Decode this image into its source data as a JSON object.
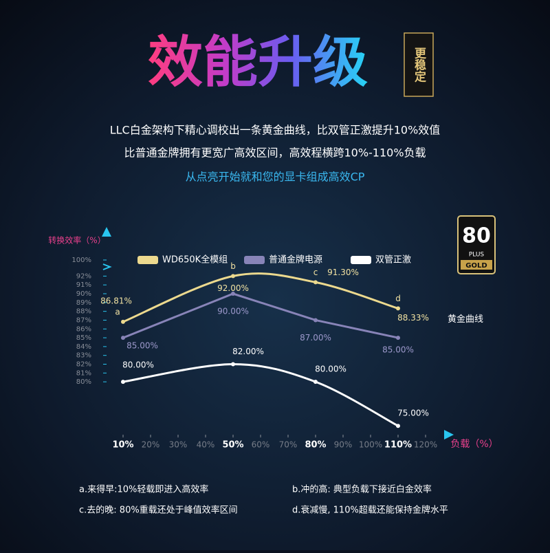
{
  "header": {
    "title": "效能升级",
    "badge": "更稳定",
    "lines": [
      "LLC白金架构下精心调校出一条黄金曲线，比双管正激提升10%效值",
      "比普通金牌拥有更宽广高效区间，高效程横跨10%-110%负载",
      "从点亮开始就和您的显卡组成高效CP"
    ]
  },
  "certification": {
    "number": "80",
    "plus": "PLUS",
    "grade": "GOLD"
  },
  "chart_data": {
    "type": "line",
    "y_label": "转换效率（%）",
    "x_label": "负载（%）",
    "x": [
      10,
      50,
      80,
      110
    ],
    "xlim": [
      4,
      128
    ],
    "xticks": [
      {
        "value": 10,
        "label": "10%"
      },
      {
        "value": 20,
        "label": "20%"
      },
      {
        "value": 30,
        "label": "30%"
      },
      {
        "value": 40,
        "label": "40%"
      },
      {
        "value": 50,
        "label": "50%"
      },
      {
        "value": 60,
        "label": "60%"
      },
      {
        "value": 70,
        "label": "70%"
      },
      {
        "value": 80,
        "label": "80%"
      },
      {
        "value": 90,
        "label": "90%"
      },
      {
        "value": 100,
        "label": "100%"
      },
      {
        "value": 110,
        "label": "110%"
      },
      {
        "value": 120,
        "label": "120%"
      }
    ],
    "ylim": [
      74,
      100
    ],
    "axis_break": [
      92.5,
      99.5
    ],
    "yticks": [
      {
        "value": 80,
        "label": "80%"
      },
      {
        "value": 81,
        "label": "81%"
      },
      {
        "value": 82,
        "label": "82%"
      },
      {
        "value": 83,
        "label": "83%"
      },
      {
        "value": 84,
        "label": "84%"
      },
      {
        "value": 85,
        "label": "85%"
      },
      {
        "value": 86,
        "label": "86%"
      },
      {
        "value": 87,
        "label": "87%"
      },
      {
        "value": 88,
        "label": "88%"
      },
      {
        "value": 89,
        "label": "89%"
      },
      {
        "value": 90,
        "label": "90%"
      },
      {
        "value": 91,
        "label": "91%"
      },
      {
        "value": 92,
        "label": "92%"
      },
      {
        "value": 100,
        "label": "100%"
      }
    ],
    "series": [
      {
        "name": "WD650K全模组",
        "color": "#ecd98e",
        "smooth": true,
        "values": [
          86.81,
          92,
          91.3,
          88.33
        ],
        "value_labels": [
          "86.81%",
          "92.00%",
          "91.30%",
          "88.33%"
        ],
        "point_labels": [
          "a",
          "b",
          "c",
          "d"
        ]
      },
      {
        "name": "普通金牌电源",
        "color": "#8884b8",
        "smooth": false,
        "values": [
          85,
          90,
          87,
          85
        ],
        "value_labels": [
          "85.00%",
          "90.00%",
          "87.00%",
          "85.00%"
        ]
      },
      {
        "name": "双管正激",
        "color": "#ffffff",
        "smooth": true,
        "values": [
          80,
          82,
          80,
          75
        ],
        "value_labels": [
          "80.00%",
          "82.00%",
          "80.00%",
          "75.00%"
        ]
      }
    ],
    "annotation": "黄金曲线",
    "notes": [
      "a.来得早:10%轻载即进入高效率",
      "b.冲的高: 典型负载下接近白金效率",
      "c.去的晚: 80%重载还处于峰值效率区间",
      "d.衰减慢, 110%超载还能保持金牌水平"
    ]
  }
}
